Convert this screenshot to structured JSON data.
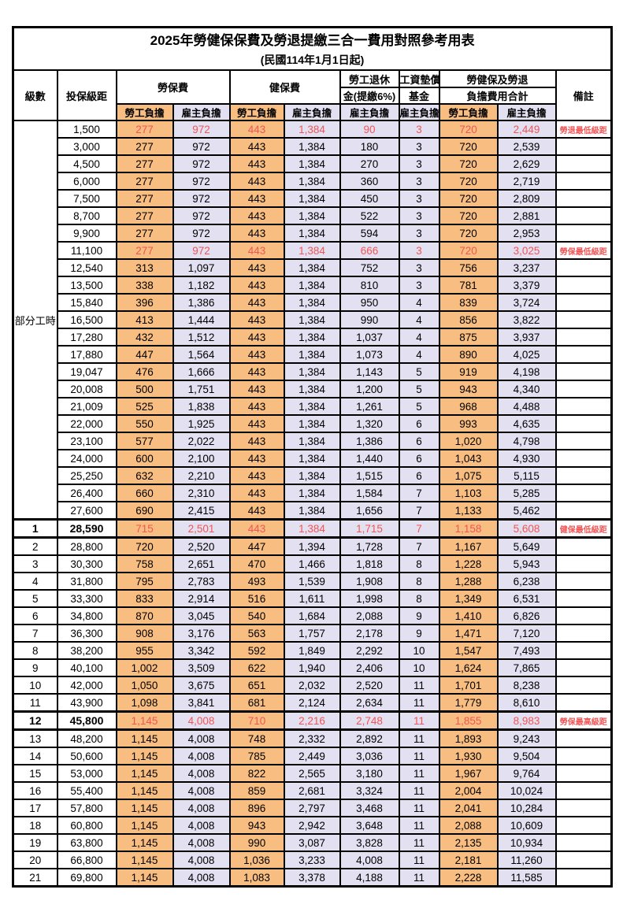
{
  "title": "2025年勞健保保費及勞退提繳三合一費用對照參考用表",
  "subtitle": "(民國114年1月1日起)",
  "colors": {
    "employee_column_bg": "#F8BE81",
    "employer_column_bg": "#E3E0F1",
    "highlight_text": "#F15555",
    "border": "#000000"
  },
  "header": {
    "level": "級數",
    "bracket": "投保級距",
    "labor_insurance": "勞保費",
    "health_insurance": "健保費",
    "pension_line1": "勞工退休",
    "pension_line2": "金(提繳6%)",
    "wage_fund_line1": "工資墊償",
    "wage_fund_line2": "基金",
    "total_line1": "勞健保及勞退",
    "total_line2": "負擔費用合計",
    "remark": "備註",
    "employee": "勞工負擔",
    "employer": "雇主負擔"
  },
  "part_time_label": "部分工時",
  "part_time_rowspan": 23,
  "rows": [
    {
      "level": "",
      "bracket": "1,500",
      "values": [
        "277",
        "972",
        "443",
        "1,384",
        "90",
        "3",
        "720",
        "2,449"
      ],
      "remark": "勞退最低級距",
      "highlight": true
    },
    {
      "level": "",
      "bracket": "3,000",
      "values": [
        "277",
        "972",
        "443",
        "1,384",
        "180",
        "3",
        "720",
        "2,539"
      ],
      "remark": ""
    },
    {
      "level": "",
      "bracket": "4,500",
      "values": [
        "277",
        "972",
        "443",
        "1,384",
        "270",
        "3",
        "720",
        "2,629"
      ],
      "remark": ""
    },
    {
      "level": "",
      "bracket": "6,000",
      "values": [
        "277",
        "972",
        "443",
        "1,384",
        "360",
        "3",
        "720",
        "2,719"
      ],
      "remark": ""
    },
    {
      "level": "",
      "bracket": "7,500",
      "values": [
        "277",
        "972",
        "443",
        "1,384",
        "450",
        "3",
        "720",
        "2,809"
      ],
      "remark": ""
    },
    {
      "level": "",
      "bracket": "8,700",
      "values": [
        "277",
        "972",
        "443",
        "1,384",
        "522",
        "3",
        "720",
        "2,881"
      ],
      "remark": ""
    },
    {
      "level": "",
      "bracket": "9,900",
      "values": [
        "277",
        "972",
        "443",
        "1,384",
        "594",
        "3",
        "720",
        "2,953"
      ],
      "remark": ""
    },
    {
      "level": "",
      "bracket": "11,100",
      "values": [
        "277",
        "972",
        "443",
        "1,384",
        "666",
        "3",
        "720",
        "3,025"
      ],
      "remark": "勞保最低級距",
      "highlight": true
    },
    {
      "level": "",
      "bracket": "12,540",
      "values": [
        "313",
        "1,097",
        "443",
        "1,384",
        "752",
        "3",
        "756",
        "3,237"
      ],
      "remark": ""
    },
    {
      "level": "",
      "bracket": "13,500",
      "values": [
        "338",
        "1,182",
        "443",
        "1,384",
        "810",
        "3",
        "781",
        "3,379"
      ],
      "remark": ""
    },
    {
      "level": "",
      "bracket": "15,840",
      "values": [
        "396",
        "1,386",
        "443",
        "1,384",
        "950",
        "4",
        "839",
        "3,724"
      ],
      "remark": ""
    },
    {
      "level": "",
      "bracket": "16,500",
      "values": [
        "413",
        "1,444",
        "443",
        "1,384",
        "990",
        "4",
        "856",
        "3,822"
      ],
      "remark": ""
    },
    {
      "level": "",
      "bracket": "17,280",
      "values": [
        "432",
        "1,512",
        "443",
        "1,384",
        "1,037",
        "4",
        "875",
        "3,937"
      ],
      "remark": ""
    },
    {
      "level": "",
      "bracket": "17,880",
      "values": [
        "447",
        "1,564",
        "443",
        "1,384",
        "1,073",
        "4",
        "890",
        "4,025"
      ],
      "remark": ""
    },
    {
      "level": "",
      "bracket": "19,047",
      "values": [
        "476",
        "1,666",
        "443",
        "1,384",
        "1,143",
        "5",
        "919",
        "4,198"
      ],
      "remark": ""
    },
    {
      "level": "",
      "bracket": "20,008",
      "values": [
        "500",
        "1,751",
        "443",
        "1,384",
        "1,200",
        "5",
        "943",
        "4,340"
      ],
      "remark": ""
    },
    {
      "level": "",
      "bracket": "21,009",
      "values": [
        "525",
        "1,838",
        "443",
        "1,384",
        "1,261",
        "5",
        "968",
        "4,488"
      ],
      "remark": ""
    },
    {
      "level": "",
      "bracket": "22,000",
      "values": [
        "550",
        "1,925",
        "443",
        "1,384",
        "1,320",
        "6",
        "993",
        "4,635"
      ],
      "remark": ""
    },
    {
      "level": "",
      "bracket": "23,100",
      "values": [
        "577",
        "2,022",
        "443",
        "1,384",
        "1,386",
        "6",
        "1,020",
        "4,798"
      ],
      "remark": ""
    },
    {
      "level": "",
      "bracket": "24,000",
      "values": [
        "600",
        "2,100",
        "443",
        "1,384",
        "1,440",
        "6",
        "1,043",
        "4,930"
      ],
      "remark": ""
    },
    {
      "level": "",
      "bracket": "25,250",
      "values": [
        "632",
        "2,210",
        "443",
        "1,384",
        "1,515",
        "6",
        "1,075",
        "5,115"
      ],
      "remark": ""
    },
    {
      "level": "",
      "bracket": "26,400",
      "values": [
        "660",
        "2,310",
        "443",
        "1,384",
        "1,584",
        "7",
        "1,103",
        "5,285"
      ],
      "remark": ""
    },
    {
      "level": "",
      "bracket": "27,600",
      "values": [
        "690",
        "2,415",
        "443",
        "1,384",
        "1,656",
        "7",
        "1,133",
        "5,462"
      ],
      "remark": ""
    },
    {
      "level": "1",
      "bracket": "28,590",
      "values": [
        "715",
        "2,501",
        "443",
        "1,384",
        "1,715",
        "7",
        "1,158",
        "5,608"
      ],
      "remark": "健保最低級距",
      "highlight": true,
      "bold": true,
      "thick": true
    },
    {
      "level": "2",
      "bracket": "28,800",
      "values": [
        "720",
        "2,520",
        "447",
        "1,394",
        "1,728",
        "7",
        "1,167",
        "5,649"
      ],
      "remark": ""
    },
    {
      "level": "3",
      "bracket": "30,300",
      "values": [
        "758",
        "2,651",
        "470",
        "1,466",
        "1,818",
        "8",
        "1,228",
        "5,943"
      ],
      "remark": ""
    },
    {
      "level": "4",
      "bracket": "31,800",
      "values": [
        "795",
        "2,783",
        "493",
        "1,539",
        "1,908",
        "8",
        "1,288",
        "6,238"
      ],
      "remark": ""
    },
    {
      "level": "5",
      "bracket": "33,300",
      "values": [
        "833",
        "2,914",
        "516",
        "1,611",
        "1,998",
        "8",
        "1,349",
        "6,531"
      ],
      "remark": ""
    },
    {
      "level": "6",
      "bracket": "34,800",
      "values": [
        "870",
        "3,045",
        "540",
        "1,684",
        "2,088",
        "9",
        "1,410",
        "6,826"
      ],
      "remark": ""
    },
    {
      "level": "7",
      "bracket": "36,300",
      "values": [
        "908",
        "3,176",
        "563",
        "1,757",
        "2,178",
        "9",
        "1,471",
        "7,120"
      ],
      "remark": ""
    },
    {
      "level": "8",
      "bracket": "38,200",
      "values": [
        "955",
        "3,342",
        "592",
        "1,849",
        "2,292",
        "10",
        "1,547",
        "7,493"
      ],
      "remark": ""
    },
    {
      "level": "9",
      "bracket": "40,100",
      "values": [
        "1,002",
        "3,509",
        "622",
        "1,940",
        "2,406",
        "10",
        "1,624",
        "7,865"
      ],
      "remark": ""
    },
    {
      "level": "10",
      "bracket": "42,000",
      "values": [
        "1,050",
        "3,675",
        "651",
        "2,032",
        "2,520",
        "11",
        "1,701",
        "8,238"
      ],
      "remark": ""
    },
    {
      "level": "11",
      "bracket": "43,900",
      "values": [
        "1,098",
        "3,841",
        "681",
        "2,124",
        "2,634",
        "11",
        "1,779",
        "8,610"
      ],
      "remark": ""
    },
    {
      "level": "12",
      "bracket": "45,800",
      "values": [
        "1,145",
        "4,008",
        "710",
        "2,216",
        "2,748",
        "11",
        "1,855",
        "8,983"
      ],
      "remark": "勞保最高級距",
      "highlight": true,
      "bold": true,
      "thick": true
    },
    {
      "level": "13",
      "bracket": "48,200",
      "values": [
        "1,145",
        "4,008",
        "748",
        "2,332",
        "2,892",
        "11",
        "1,893",
        "9,243"
      ],
      "remark": ""
    },
    {
      "level": "14",
      "bracket": "50,600",
      "values": [
        "1,145",
        "4,008",
        "785",
        "2,449",
        "3,036",
        "11",
        "1,930",
        "9,504"
      ],
      "remark": ""
    },
    {
      "level": "15",
      "bracket": "53,000",
      "values": [
        "1,145",
        "4,008",
        "822",
        "2,565",
        "3,180",
        "11",
        "1,967",
        "9,764"
      ],
      "remark": ""
    },
    {
      "level": "16",
      "bracket": "55,400",
      "values": [
        "1,145",
        "4,008",
        "859",
        "2,681",
        "3,324",
        "11",
        "2,004",
        "10,024"
      ],
      "remark": ""
    },
    {
      "level": "17",
      "bracket": "57,800",
      "values": [
        "1,145",
        "4,008",
        "896",
        "2,797",
        "3,468",
        "11",
        "2,041",
        "10,284"
      ],
      "remark": ""
    },
    {
      "level": "18",
      "bracket": "60,800",
      "values": [
        "1,145",
        "4,008",
        "943",
        "2,942",
        "3,648",
        "11",
        "2,088",
        "10,609"
      ],
      "remark": ""
    },
    {
      "level": "19",
      "bracket": "63,800",
      "values": [
        "1,145",
        "4,008",
        "990",
        "3,087",
        "3,828",
        "11",
        "2,135",
        "10,934"
      ],
      "remark": ""
    },
    {
      "level": "20",
      "bracket": "66,800",
      "values": [
        "1,145",
        "4,008",
        "1,036",
        "3,233",
        "4,008",
        "11",
        "2,181",
        "11,260"
      ],
      "remark": ""
    },
    {
      "level": "21",
      "bracket": "69,800",
      "values": [
        "1,145",
        "4,008",
        "1,083",
        "3,378",
        "4,188",
        "11",
        "2,228",
        "11,585"
      ],
      "remark": ""
    }
  ]
}
